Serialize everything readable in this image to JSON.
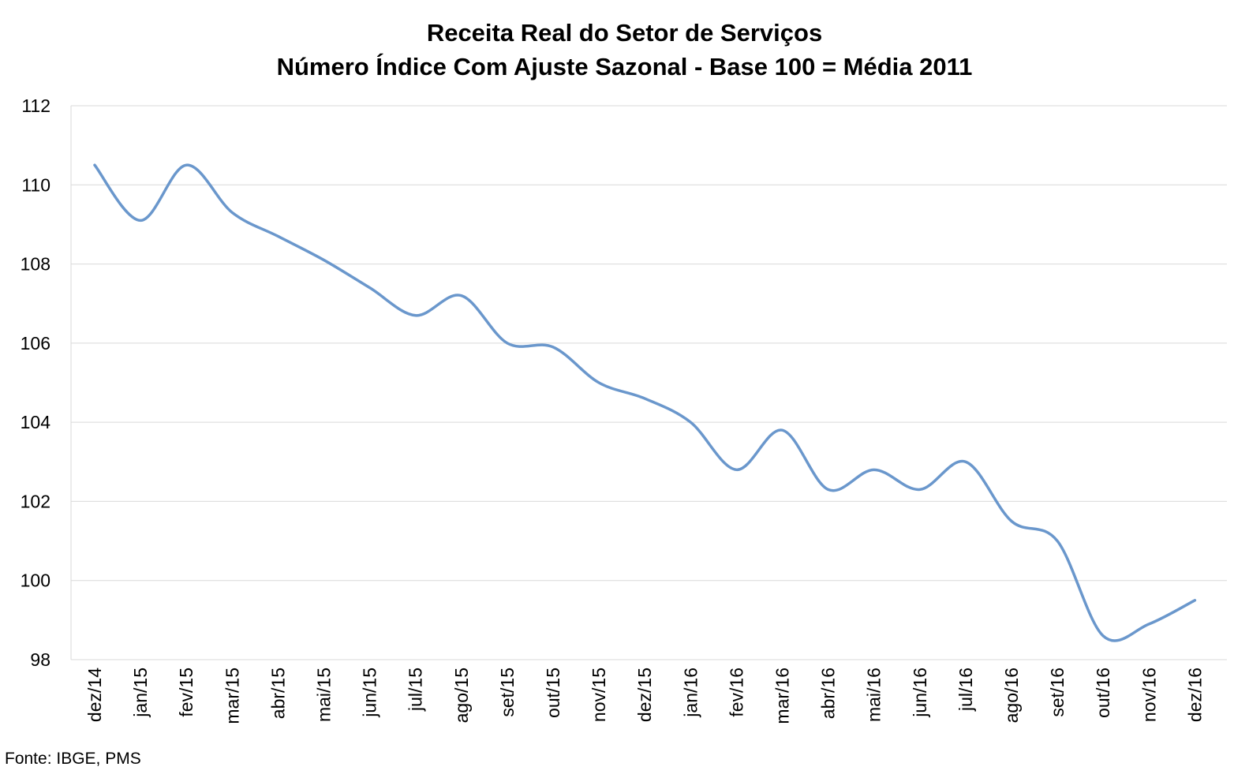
{
  "chart_data": {
    "type": "line",
    "title": "Receita Real do Setor de Serviços",
    "subtitle": "Número Índice Com Ajuste Sazonal - Base 100 = Média 2011",
    "xlabel": "",
    "ylabel": "",
    "categories": [
      "dez/14",
      "jan/15",
      "fev/15",
      "mar/15",
      "abr/15",
      "mai/15",
      "jun/15",
      "jul/15",
      "ago/15",
      "set/15",
      "out/15",
      "nov/15",
      "dez/15",
      "jan/16",
      "fev/16",
      "mar/16",
      "abr/16",
      "mai/16",
      "jun/16",
      "jul/16",
      "ago/16",
      "set/16",
      "out/16",
      "nov/16",
      "dez/16"
    ],
    "series": [
      {
        "color": "#6a97cc",
        "values": [
          110.5,
          109.1,
          110.5,
          109.3,
          108.7,
          108.1,
          107.4,
          106.7,
          107.2,
          106.0,
          105.9,
          105.0,
          104.6,
          104.0,
          102.8,
          103.8,
          102.3,
          102.8,
          102.3,
          103.0,
          101.5,
          101.0,
          98.6,
          98.9,
          99.5
        ]
      }
    ],
    "ylim": [
      98,
      112
    ],
    "yticks": [
      98,
      100,
      102,
      104,
      106,
      108,
      110,
      112
    ],
    "grid": true,
    "legend": "none"
  },
  "source": "Fonte: IBGE, PMS"
}
